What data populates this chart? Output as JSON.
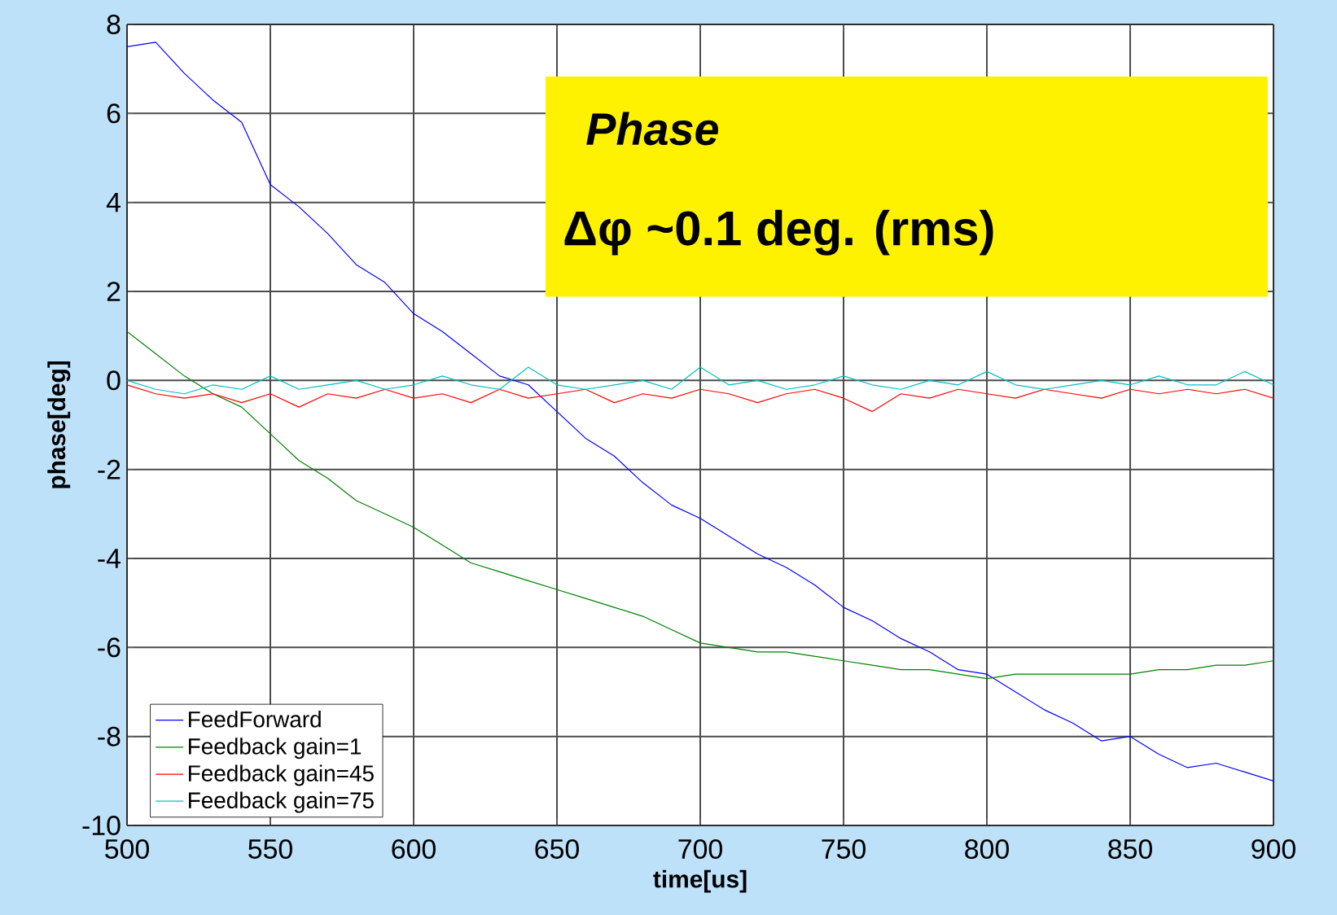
{
  "chart_data": {
    "type": "line",
    "xlabel": "time[us]",
    "ylabel": "phase[deg]",
    "annotations": [
      "Phase",
      "Δφ ~0.1 deg. (rms)"
    ],
    "x": [
      500,
      510,
      520,
      530,
      540,
      550,
      560,
      570,
      580,
      590,
      600,
      610,
      620,
      630,
      640,
      650,
      660,
      670,
      680,
      690,
      700,
      710,
      720,
      730,
      740,
      750,
      760,
      770,
      780,
      790,
      800,
      810,
      820,
      830,
      840,
      850,
      860,
      870,
      880,
      890,
      900
    ],
    "series": [
      {
        "name": "FeedForward",
        "color": "#0000ff",
        "values": [
          7.5,
          7.6,
          6.9,
          6.3,
          5.8,
          4.4,
          3.9,
          3.3,
          2.6,
          2.2,
          1.5,
          1.1,
          0.6,
          0.1,
          -0.1,
          -0.7,
          -1.3,
          -1.7,
          -2.3,
          -2.8,
          -3.1,
          -3.5,
          -3.9,
          -4.2,
          -4.6,
          -5.1,
          -5.4,
          -5.8,
          -6.1,
          -6.5,
          -6.6,
          -7.0,
          -7.4,
          -7.7,
          -8.1,
          -8.0,
          -8.4,
          -8.7,
          -8.6,
          -8.8,
          -9.0
        ]
      },
      {
        "name": "Feedback gain=1",
        "color": "#008000",
        "values": [
          1.1,
          0.6,
          0.1,
          -0.3,
          -0.6,
          -1.2,
          -1.8,
          -2.2,
          -2.7,
          -3.0,
          -3.3,
          -3.7,
          -4.1,
          -4.3,
          -4.5,
          -4.7,
          -4.9,
          -5.1,
          -5.3,
          -5.6,
          -5.9,
          -6.0,
          -6.1,
          -6.1,
          -6.2,
          -6.3,
          -6.4,
          -6.5,
          -6.5,
          -6.6,
          -6.7,
          -6.6,
          -6.6,
          -6.6,
          -6.6,
          -6.6,
          -6.5,
          -6.5,
          -6.4,
          -6.4,
          -6.3
        ]
      },
      {
        "name": "Feedback gain=45",
        "color": "#ff0000",
        "values": [
          -0.1,
          -0.3,
          -0.4,
          -0.3,
          -0.5,
          -0.3,
          -0.6,
          -0.3,
          -0.4,
          -0.2,
          -0.4,
          -0.3,
          -0.5,
          -0.2,
          -0.4,
          -0.3,
          -0.2,
          -0.5,
          -0.3,
          -0.4,
          -0.2,
          -0.3,
          -0.5,
          -0.3,
          -0.2,
          -0.4,
          -0.7,
          -0.3,
          -0.4,
          -0.2,
          -0.3,
          -0.4,
          -0.2,
          -0.3,
          -0.4,
          -0.2,
          -0.3,
          -0.2,
          -0.3,
          -0.2,
          -0.4
        ]
      },
      {
        "name": "Feedback gain=75",
        "color": "#00bfbf",
        "values": [
          0.0,
          -0.2,
          -0.3,
          -0.1,
          -0.2,
          0.1,
          -0.2,
          -0.1,
          0.0,
          -0.2,
          -0.1,
          0.1,
          -0.1,
          -0.2,
          0.3,
          -0.1,
          -0.2,
          -0.1,
          0.0,
          -0.2,
          0.3,
          -0.1,
          0.0,
          -0.2,
          -0.1,
          0.1,
          -0.1,
          -0.2,
          0.0,
          -0.1,
          0.2,
          -0.1,
          -0.2,
          -0.1,
          0.0,
          -0.1,
          0.1,
          -0.1,
          -0.1,
          0.2,
          -0.1
        ]
      }
    ],
    "xlim": [
      500,
      900
    ],
    "ylim": [
      -10,
      8
    ],
    "xticks": [
      500,
      550,
      600,
      650,
      700,
      750,
      800,
      850,
      900
    ],
    "yticks": [
      -10,
      -8,
      -6,
      -4,
      -2,
      0,
      2,
      4,
      6,
      8
    ],
    "grid": true,
    "legend": "bottom left",
    "marker": "none",
    "line_style": "solid"
  }
}
